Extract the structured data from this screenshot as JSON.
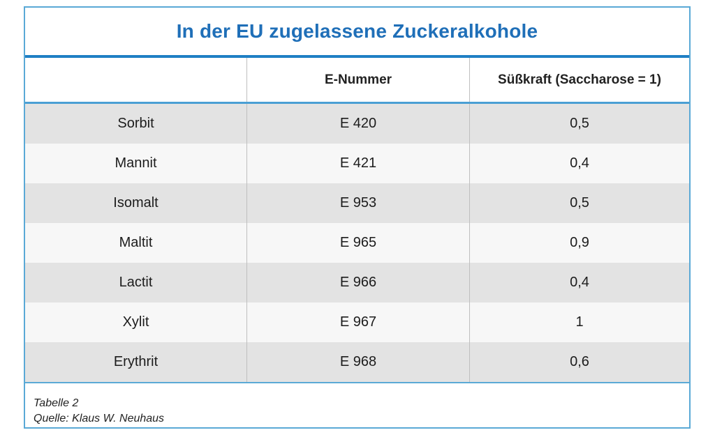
{
  "table": {
    "title": "In der EU zugelassene Zuckeralkohole",
    "headers": [
      "",
      "E-Nummer",
      "Süßkraft (Saccharose = 1)"
    ],
    "rows": [
      [
        "Sorbit",
        "E 420",
        "0,5"
      ],
      [
        "Mannit",
        "E 421",
        "0,4"
      ],
      [
        "Isomalt",
        "E 953",
        "0,5"
      ],
      [
        "Maltit",
        "E 965",
        "0,9"
      ],
      [
        "Lactit",
        "E 966",
        "0,4"
      ],
      [
        "Xylit",
        "E 967",
        "1"
      ],
      [
        "Erythrit",
        "E 968",
        "0,6"
      ]
    ]
  },
  "footer": {
    "caption": "Tabelle 2",
    "source": "Quelle: Klaus W. Neuhaus"
  },
  "colors": {
    "title": "#1f6fb8",
    "border": "#5aa9d6",
    "row_dark": "#e3e3e3",
    "row_light": "#f7f7f7"
  }
}
